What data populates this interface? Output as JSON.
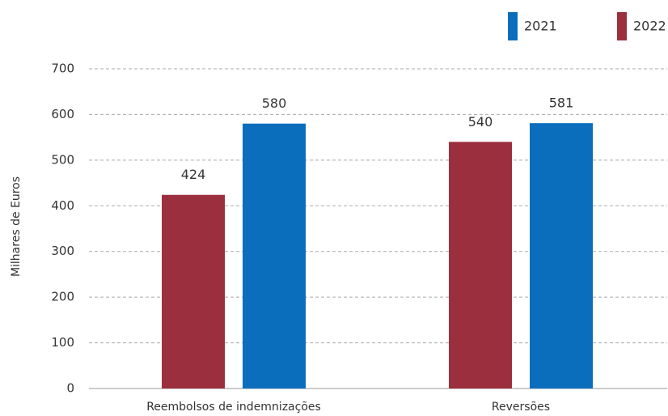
{
  "chart_data": {
    "type": "bar",
    "y_label": "Milhares de Euros",
    "categories": [
      "Reembolsos de indemnizações",
      "Reversões"
    ],
    "series": [
      {
        "name": "2021",
        "color": "#0a6ebd",
        "values": [
          580,
          581
        ]
      },
      {
        "name": "2022",
        "color": "#9b2f3e",
        "values": [
          424,
          540
        ]
      }
    ],
    "ylim": [
      0,
      700
    ],
    "yticks": [
      0,
      100,
      200,
      300,
      400,
      500,
      600,
      700
    ],
    "grid": true,
    "legend": "top-right"
  }
}
